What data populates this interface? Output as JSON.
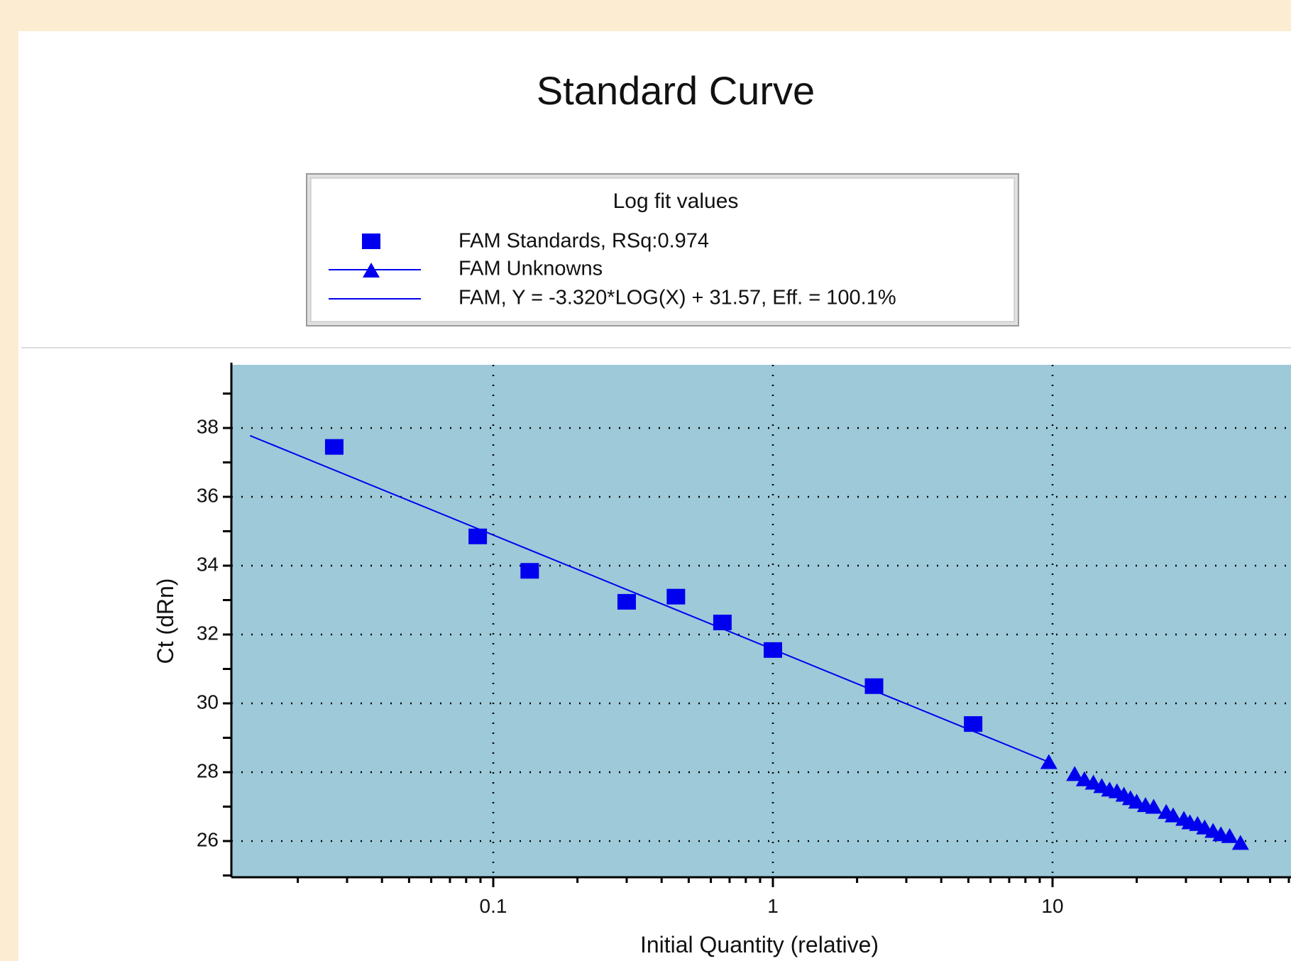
{
  "chart_data": {
    "type": "scatter",
    "title": "Standard Curve",
    "xlabel": "Initial Quantity (relative)",
    "ylabel": "Ct (dRn)",
    "x_scale": "log",
    "xlim": [
      0.01,
      80
    ],
    "ylim": [
      25.1,
      39
    ],
    "x_ticks": [
      0.1,
      1,
      10
    ],
    "x_tick_labels": [
      "0.1",
      "1",
      "10"
    ],
    "y_ticks": [
      26,
      28,
      30,
      32,
      34,
      36,
      38
    ],
    "y_tick_labels": [
      "26",
      "28",
      "30",
      "32",
      "34",
      "36",
      "38"
    ],
    "grid": true,
    "colors": {
      "series": "#0000ee",
      "plot_background": "#9dc9d8",
      "page_background": "#fbecd2"
    },
    "legend": {
      "title": "Log fit values",
      "placement": "top-center",
      "entries": [
        "FAM Standards, RSq:0.974",
        "FAM Unknowns",
        "FAM, Y = -3.320*LOG(X) + 31.57, Eff. = 100.1%"
      ]
    },
    "fit": {
      "slope": -3.32,
      "intercept": 31.57,
      "x_range": [
        0.0135,
        10
      ]
    },
    "series": [
      {
        "name": "FAM Standards",
        "marker": "square",
        "x": [
          0.027,
          0.088,
          0.135,
          0.3,
          0.45,
          0.66,
          1.0,
          2.3,
          5.2
        ],
        "y": [
          37.45,
          34.85,
          33.85,
          32.95,
          33.1,
          32.35,
          31.55,
          30.5,
          29.4
        ]
      },
      {
        "name": "FAM Unknowns",
        "marker": "triangle",
        "x": [
          9.7,
          12.0,
          13.0,
          14.0,
          15.0,
          16.0,
          17.0,
          18.0,
          19.0,
          20.0,
          21.5,
          23.0,
          25.5,
          27.0,
          29.5,
          31.0,
          33.0,
          35.0,
          37.5,
          40.0,
          43.0,
          47.0
        ],
        "y": [
          28.3,
          27.95,
          27.8,
          27.7,
          27.6,
          27.5,
          27.45,
          27.35,
          27.25,
          27.15,
          27.05,
          27.0,
          26.85,
          26.75,
          26.65,
          26.55,
          26.5,
          26.4,
          26.3,
          26.2,
          26.15,
          25.95
        ]
      }
    ]
  }
}
